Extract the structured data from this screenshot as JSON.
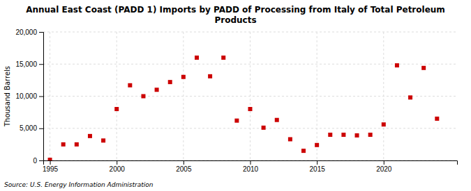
{
  "chart_data": {
    "type": "scatter",
    "title": "Annual East Coast (PADD 1) Imports by PADD of Processing from Italy of Total Petroleum\nProducts",
    "y_label": "Thousand Barrels",
    "source": "Source: U.S. Energy Information Administration",
    "x": [
      1995,
      1996,
      1997,
      1998,
      1999,
      2000,
      2001,
      2002,
      2003,
      2004,
      2005,
      2006,
      2007,
      2008,
      2009,
      2010,
      2011,
      2012,
      2013,
      2014,
      2015,
      2016,
      2017,
      2018,
      2019,
      2020,
      2021,
      2022,
      2023,
      2024
    ],
    "values": [
      100,
      2500,
      2500,
      3800,
      3100,
      8000,
      11700,
      10000,
      11000,
      12200,
      13000,
      16000,
      13100,
      16000,
      6200,
      8000,
      5100,
      6300,
      3300,
      1500,
      2400,
      4000,
      4000,
      3900,
      4000,
      5600,
      14800,
      9800,
      14400,
      6500
    ],
    "color": "#cc0000",
    "marker": "square",
    "xlim": [
      1994.5,
      2025.5
    ],
    "ylim": [
      0,
      20000
    ],
    "xticks": [
      1995,
      2000,
      2005,
      2010,
      2015,
      2020
    ],
    "yticks": [
      0,
      {
        "value": 5000,
        "label": "5,000"
      },
      {
        "value": 10000,
        "label": "10,000"
      },
      {
        "value": 15000,
        "label": "15,000"
      },
      {
        "value": 20000,
        "label": "20,000"
      }
    ],
    "grid": true
  }
}
